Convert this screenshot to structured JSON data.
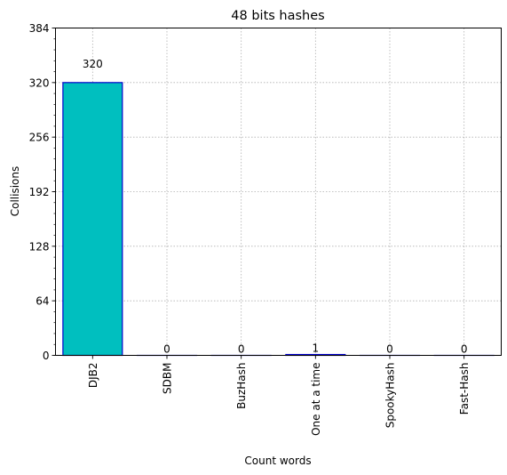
{
  "chart_data": {
    "type": "bar",
    "title": "48 bits hashes",
    "xlabel": "Count words",
    "ylabel": "Collisions",
    "categories": [
      "DJB2",
      "SDBM",
      "BuzHash",
      "One at a time",
      "SpookyHash",
      "Fast-Hash"
    ],
    "values": [
      320,
      0,
      0,
      1,
      0,
      0
    ],
    "data_labels": [
      "320",
      "0",
      "0",
      "1",
      "0",
      "0"
    ],
    "ylim": [
      0,
      384
    ],
    "yticks": [
      0,
      64,
      128,
      192,
      256,
      320,
      384
    ],
    "ytick_labels": [
      "0",
      "64",
      "128",
      "192",
      "256",
      "320",
      "384"
    ],
    "y_minor_step": 12.8,
    "grid": true,
    "bar_fill": "#00bfbf",
    "bar_edge": "#0000cc",
    "grid_color": "#b0b0b0"
  }
}
